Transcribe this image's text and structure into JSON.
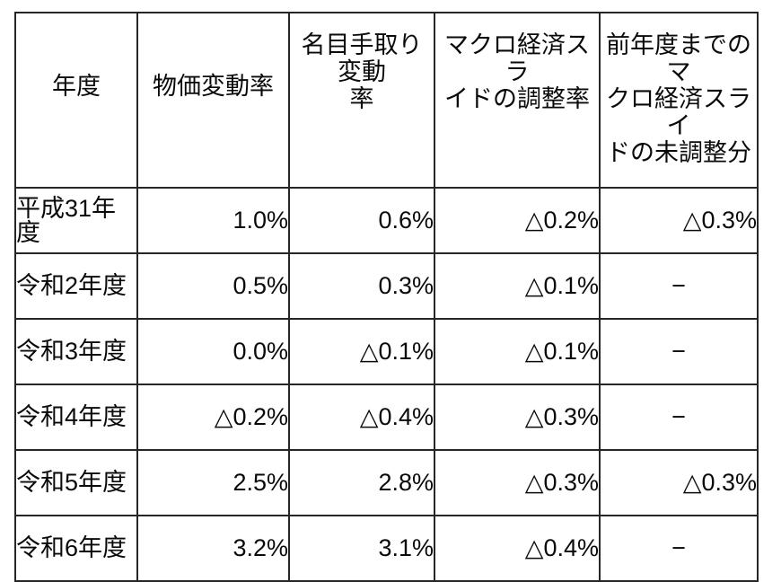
{
  "chart_data": {
    "type": "table",
    "columns": [
      "年度",
      "物価変動率",
      "名目手取り変動率",
      "マクロ経済スライドの調整率",
      "前年度までのマクロ経済スライドの未調整分"
    ],
    "rows": [
      [
        "平成31年度",
        "1.0%",
        "0.6%",
        "△0.2%",
        "△0.3%"
      ],
      [
        "令和2年度",
        "0.5%",
        "0.3%",
        "△0.1%",
        "−"
      ],
      [
        "令和3年度",
        "0.0%",
        "△0.1%",
        "△0.1%",
        "−"
      ],
      [
        "令和4年度",
        "△0.2%",
        "△0.4%",
        "△0.3%",
        "−"
      ],
      [
        "令和5年度",
        "2.5%",
        "2.8%",
        "△0.3%",
        "△0.3%"
      ],
      [
        "令和6年度",
        "3.2%",
        "3.1%",
        "△0.4%",
        "−"
      ]
    ],
    "missing_value_marker": "−",
    "negative_marker": "△",
    "layout_hints": {
      "grid": "all-borders",
      "border_color": "#262626",
      "background": "#ffffff",
      "text_color": "#0a0a0a"
    }
  },
  "header": {
    "columns_display": [
      "年度",
      "物価変動率",
      "名目手取り変動\n率",
      "マクロ経済スラ\nイドの調整率",
      "前年度までのマ\nクロ経済スライ\nドの未調整分"
    ]
  }
}
